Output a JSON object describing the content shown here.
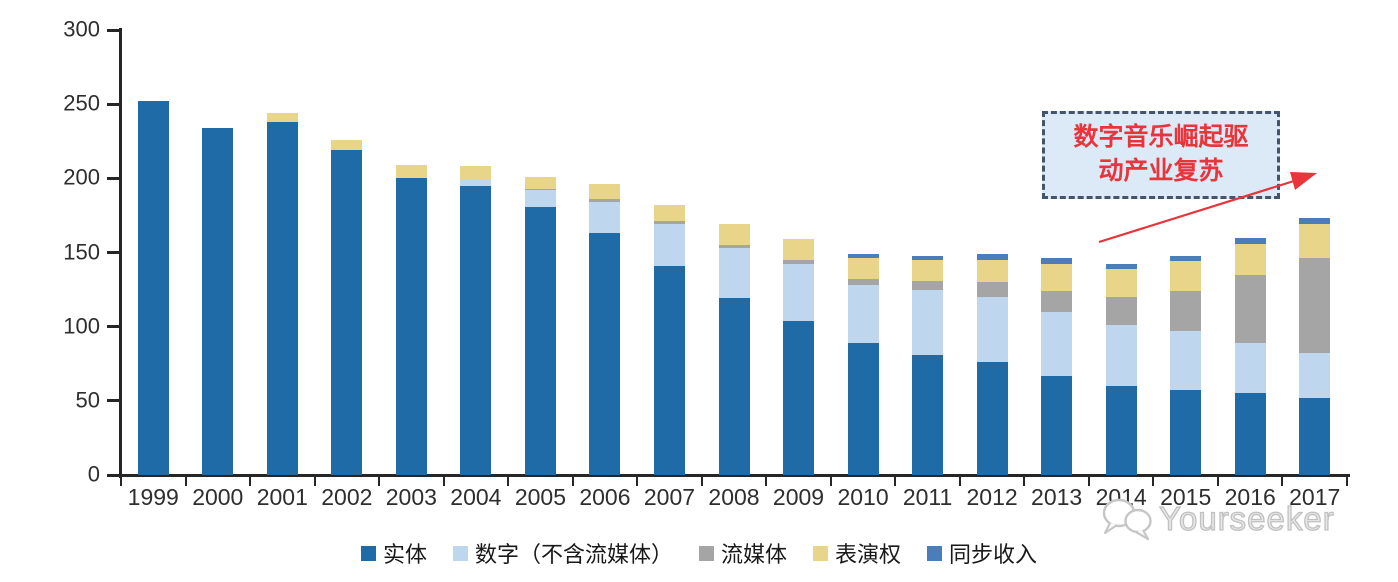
{
  "chart_data": {
    "type": "bar",
    "stacked": true,
    "title": "",
    "xlabel": "",
    "ylabel": "",
    "ylim": [
      0,
      300
    ],
    "yticks": [
      0,
      50,
      100,
      150,
      200,
      250,
      300
    ],
    "grid": false,
    "legend_position": "bottom",
    "categories": [
      "1999",
      "2000",
      "2001",
      "2002",
      "2003",
      "2004",
      "2005",
      "2006",
      "2007",
      "2008",
      "2009",
      "2010",
      "2011",
      "2012",
      "2013",
      "2014",
      "2015",
      "2016",
      "2017"
    ],
    "series": [
      {
        "key": "physical",
        "name": "实体",
        "color": "#1F6BA8",
        "values": [
          252,
          234,
          238,
          219,
          200,
          195,
          181,
          163,
          141,
          119,
          104,
          89,
          81,
          76,
          67,
          60,
          57,
          55,
          52
        ]
      },
      {
        "key": "digital-ex-streaming",
        "name": "数字（不含流媒体）",
        "color": "#BED7EE",
        "values": [
          0,
          0,
          0,
          0,
          1,
          4,
          11,
          21,
          28,
          34,
          38,
          39,
          44,
          44,
          43,
          41,
          40,
          34,
          30
        ]
      },
      {
        "key": "streaming",
        "name": "流媒体",
        "color": "#A5A5A5",
        "values": [
          0,
          0,
          0,
          0,
          0,
          0,
          1,
          2,
          2,
          2,
          3,
          4,
          6,
          10,
          14,
          19,
          27,
          46,
          64
        ]
      },
      {
        "key": "performance-rights",
        "name": "表演权",
        "color": "#E8D58A",
        "values": [
          0,
          0,
          6,
          7,
          8,
          9,
          8,
          10,
          11,
          14,
          14,
          14,
          14,
          15,
          18,
          19,
          20,
          21,
          23
        ]
      },
      {
        "key": "sync-revenue",
        "name": "同步收入",
        "color": "#4A7EBB",
        "values": [
          0,
          0,
          0,
          0,
          0,
          0,
          0,
          0,
          0,
          0,
          0,
          3,
          3,
          4,
          4,
          3,
          4,
          4,
          4
        ]
      }
    ]
  },
  "annotation": {
    "line1": "数字音乐崛起驱",
    "line2": "动产业复苏",
    "text_color": "#E8353B",
    "box_fill": "#DCE9F7",
    "box_border": "#44546A",
    "arrow_color": "#E8353B"
  },
  "watermark": {
    "text": "Yourseeker"
  },
  "colors": {
    "axis": "#262626",
    "label": "#2e2e2e",
    "background": "#ffffff"
  }
}
